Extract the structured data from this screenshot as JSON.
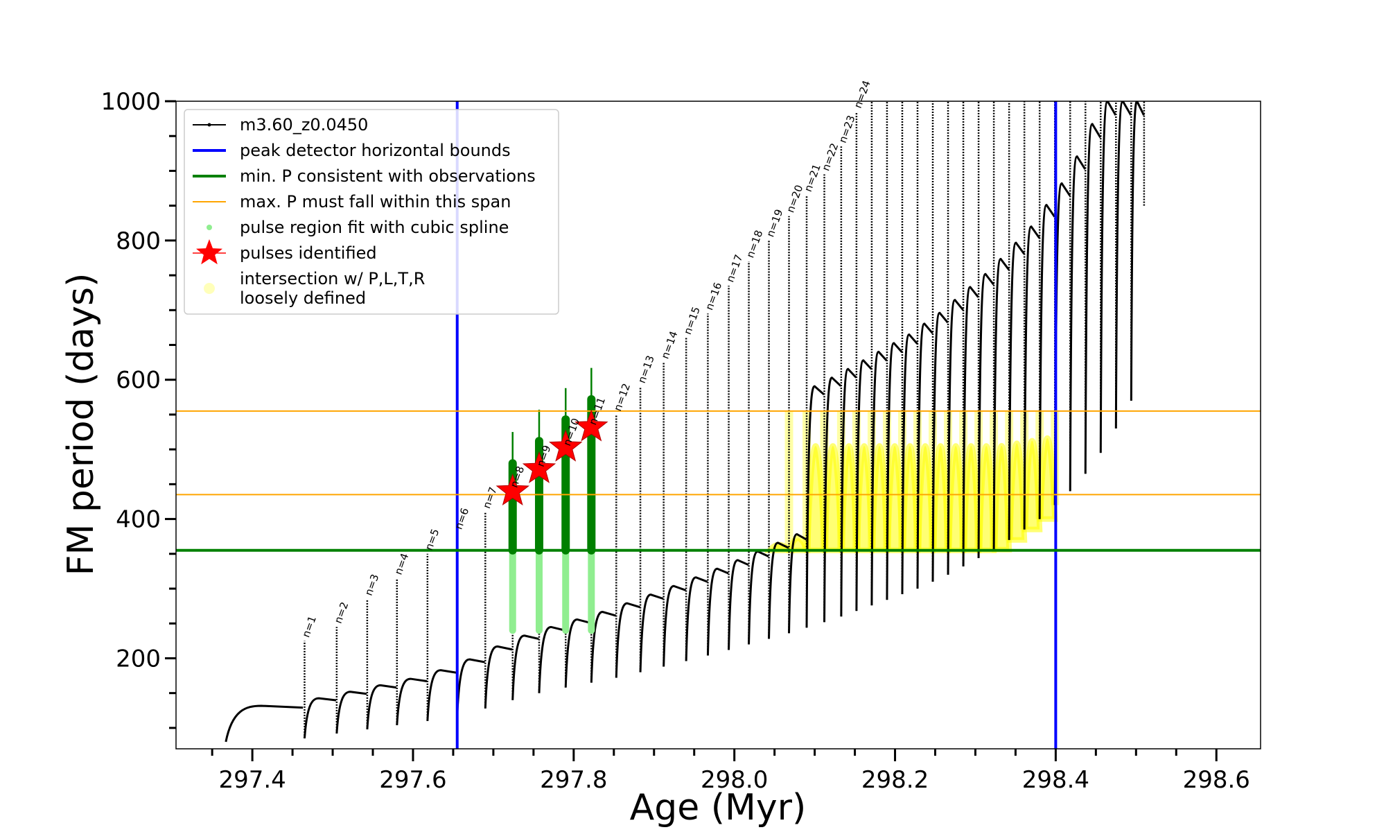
{
  "chart_data": {
    "type": "line",
    "xlabel": "Age (Myr)",
    "ylabel": "FM period (days)",
    "xlim": [
      297.305,
      298.655
    ],
    "ylim": [
      70,
      1000
    ],
    "x_ticks": [
      "297.4",
      "297.6",
      "297.8",
      "298.0",
      "298.2",
      "298.4",
      "298.6"
    ],
    "y_ticks": [
      "200",
      "400",
      "600",
      "800",
      "1000"
    ],
    "legend_position": "upper-left",
    "legend": [
      {
        "label": "m3.60_z0.0450",
        "color": "#000000",
        "marker": "line-dot"
      },
      {
        "label": "peak detector horizontal bounds",
        "color": "#0000ff",
        "marker": "line"
      },
      {
        "label": "min. P consistent with observations",
        "color": "#008000",
        "marker": "line"
      },
      {
        "label": "max. P must fall within this span",
        "color": "#ffa500",
        "marker": "line-thin"
      },
      {
        "label": "pulse region fit with cubic spline",
        "color": "#90ee90",
        "marker": "dot"
      },
      {
        "label": "pulses identified",
        "color": "#ff0000",
        "marker": "star"
      },
      {
        "label": "intersection w/ P,L,T,R",
        "label2": "loosely defined",
        "color": "#ffff66",
        "marker": "circle"
      }
    ],
    "peak_detector_bounds_x": [
      297.655,
      298.4
    ],
    "min_P": 355,
    "max_P_span": [
      435,
      555
    ],
    "pulses": [
      {
        "n": "n=1",
        "x": 297.465,
        "low": 85,
        "high": 225
      },
      {
        "n": "n=2",
        "x": 297.505,
        "low": 92,
        "high": 245
      },
      {
        "n": "n=3",
        "x": 297.543,
        "low": 98,
        "high": 285
      },
      {
        "n": "n=4",
        "x": 297.58,
        "low": 104,
        "high": 315
      },
      {
        "n": "n=5",
        "x": 297.618,
        "low": 110,
        "high": 350
      },
      {
        "n": "n=6",
        "x": 297.655,
        "low": 118,
        "high": 380
      },
      {
        "n": "n=7",
        "x": 297.69,
        "low": 128,
        "high": 410
      },
      {
        "n": "n=8",
        "x": 297.724,
        "low": 140,
        "high": 440
      },
      {
        "n": "n=9",
        "x": 297.757,
        "low": 150,
        "high": 470
      },
      {
        "n": "n=10",
        "x": 297.79,
        "low": 158,
        "high": 500
      },
      {
        "n": "n=11",
        "x": 297.822,
        "low": 165,
        "high": 530
      },
      {
        "n": "n=12",
        "x": 297.853,
        "low": 172,
        "high": 550
      },
      {
        "n": "n=13",
        "x": 297.883,
        "low": 180,
        "high": 590
      },
      {
        "n": "n=14",
        "x": 297.912,
        "low": 188,
        "high": 625
      },
      {
        "n": "n=15",
        "x": 297.94,
        "low": 196,
        "high": 660
      },
      {
        "n": "n=16",
        "x": 297.967,
        "low": 204,
        "high": 695
      },
      {
        "n": "n=17",
        "x": 297.993,
        "low": 212,
        "high": 735
      },
      {
        "n": "n=18",
        "x": 298.018,
        "low": 220,
        "high": 770
      },
      {
        "n": "n=19",
        "x": 298.043,
        "low": 228,
        "high": 800
      },
      {
        "n": "n=20",
        "x": 298.068,
        "low": 236,
        "high": 835
      },
      {
        "n": "n=21",
        "x": 298.09,
        "low": 244,
        "high": 865
      },
      {
        "n": "n=22",
        "x": 298.112,
        "low": 252,
        "high": 895
      },
      {
        "n": "n=23",
        "x": 298.133,
        "low": 260,
        "high": 935
      },
      {
        "n": "n=24",
        "x": 298.152,
        "low": 268,
        "high": 985
      },
      {
        "n": "",
        "x": 298.171,
        "low": 276,
        "high": 1000
      },
      {
        "n": "",
        "x": 298.19,
        "low": 284,
        "high": 1000
      },
      {
        "n": "",
        "x": 298.209,
        "low": 292,
        "high": 1000
      },
      {
        "n": "",
        "x": 298.228,
        "low": 300,
        "high": 1000
      },
      {
        "n": "",
        "x": 298.247,
        "low": 310,
        "high": 1000
      },
      {
        "n": "",
        "x": 298.266,
        "low": 320,
        "high": 1000
      },
      {
        "n": "",
        "x": 298.285,
        "low": 332,
        "high": 1000
      },
      {
        "n": "",
        "x": 298.304,
        "low": 344,
        "high": 1000
      },
      {
        "n": "",
        "x": 298.323,
        "low": 356,
        "high": 1000
      },
      {
        "n": "",
        "x": 298.342,
        "low": 370,
        "high": 1000
      },
      {
        "n": "",
        "x": 298.361,
        "low": 385,
        "high": 1000
      },
      {
        "n": "",
        "x": 298.38,
        "low": 400,
        "high": 1000
      },
      {
        "n": "",
        "x": 298.399,
        "low": 420,
        "high": 1000
      },
      {
        "n": "",
        "x": 298.418,
        "low": 440,
        "high": 1000
      },
      {
        "n": "",
        "x": 298.437,
        "low": 465,
        "high": 1000
      },
      {
        "n": "",
        "x": 298.456,
        "low": 495,
        "high": 1000
      },
      {
        "n": "",
        "x": 298.475,
        "low": 530,
        "high": 1000
      },
      {
        "n": "",
        "x": 298.494,
        "low": 570,
        "high": 1000
      },
      {
        "n": "",
        "x": 298.51,
        "low": 850,
        "high": 1000
      }
    ],
    "identified_pulses": [
      {
        "x": 297.724,
        "y": 440
      },
      {
        "x": 297.757,
        "y": 472
      },
      {
        "x": 297.79,
        "y": 503
      },
      {
        "x": 297.822,
        "y": 532
      }
    ],
    "curve_start": {
      "x": 297.367,
      "y": 80
    },
    "colors": {
      "model": "#000000",
      "bounds": "#0000ff",
      "minP": "#008000",
      "maxP": "#ffa500",
      "spline": "#90ee90",
      "spline_dark": "#008000",
      "star": "#ff0000",
      "intersection": "#ffff00"
    }
  }
}
